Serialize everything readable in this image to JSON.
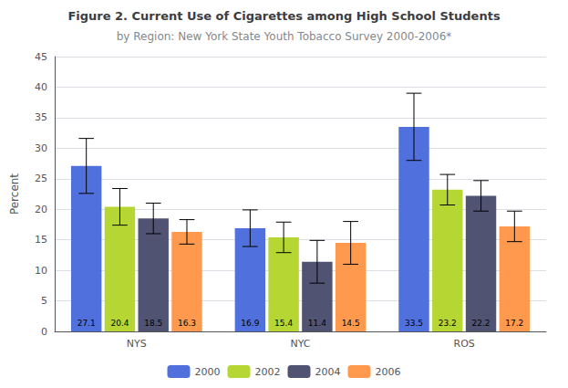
{
  "chart_data": {
    "type": "bar",
    "title": "Figure 2. Current Use of Cigarettes among High School Students",
    "subtitle": "by Region: New York State Youth Tobacco Survey 2000-2006*",
    "categories": [
      "NYS",
      "NYC",
      "ROS"
    ],
    "series": [
      {
        "name": "2000",
        "values": [
          27.1,
          16.9,
          33.5
        ],
        "errors": [
          4.5,
          3.0,
          5.5
        ]
      },
      {
        "name": "2002",
        "values": [
          20.4,
          15.4,
          23.2
        ],
        "errors": [
          3.0,
          2.5,
          2.5
        ]
      },
      {
        "name": "2004",
        "values": [
          18.5,
          11.4,
          22.2
        ],
        "errors": [
          2.5,
          3.5,
          2.5
        ]
      },
      {
        "name": "2006",
        "values": [
          16.3,
          14.5,
          17.2
        ],
        "errors": [
          2.0,
          3.5,
          2.5
        ]
      }
    ],
    "ylabel": "Percent",
    "ylim": [
      0,
      45
    ],
    "yticks": [
      0,
      5,
      10,
      15,
      20,
      25,
      30,
      35,
      40,
      45
    ],
    "grid": true,
    "legend": "bottom",
    "data_labels": true
  }
}
